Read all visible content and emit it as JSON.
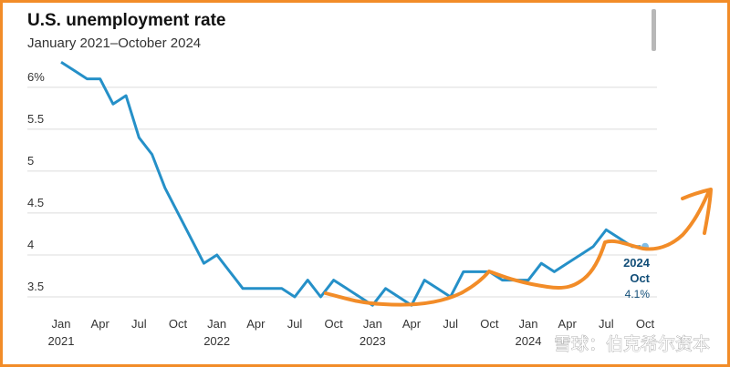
{
  "chart_data": {
    "type": "line",
    "title": "U.S. unemployment rate",
    "subtitle": "January 2021–October 2024",
    "categories": [
      "Jan",
      null,
      null,
      "Apr",
      null,
      null,
      "Jul",
      null,
      null,
      "Oct",
      null,
      null,
      "Jan",
      null,
      null,
      "Apr",
      null,
      null,
      "Jul",
      null,
      null,
      "Oct",
      null,
      null,
      "Jan",
      null,
      null,
      "Apr",
      null,
      null,
      "Jul",
      null,
      null,
      "Oct",
      null,
      null,
      "Jan",
      null,
      null,
      "Apr",
      null,
      null,
      "Jul",
      null,
      null,
      "Oct"
    ],
    "years": [
      "2021",
      "2022",
      "2023",
      "2024"
    ],
    "series": [
      {
        "name": "Unemployment rate",
        "color": "#2590c8",
        "values": [
          6.3,
          6.2,
          6.1,
          6.1,
          5.8,
          5.9,
          5.4,
          5.2,
          4.8,
          4.5,
          4.2,
          3.9,
          4.0,
          3.8,
          3.6,
          3.6,
          3.6,
          3.6,
          3.5,
          3.7,
          3.5,
          3.7,
          3.6,
          3.5,
          3.4,
          3.6,
          3.5,
          3.4,
          3.7,
          3.6,
          3.5,
          3.8,
          3.8,
          3.8,
          3.7,
          3.7,
          3.7,
          3.9,
          3.8,
          3.9,
          4.0,
          4.1,
          4.3,
          4.2,
          4.1,
          4.1
        ],
        "value_labels": [
          null,
          null,
          null,
          null,
          null,
          null,
          null,
          null,
          null,
          null,
          null,
          null,
          null,
          null,
          null,
          null,
          null,
          null,
          null,
          null,
          null,
          null,
          null,
          null,
          null,
          null,
          null,
          null,
          null,
          null,
          null,
          null,
          null,
          null,
          null,
          null,
          null,
          null,
          null,
          null,
          null,
          null,
          null,
          null,
          null,
          "4.1%"
        ]
      }
    ],
    "end_label": [
      "2024",
      "Oct"
    ],
    "ylim": [
      3.35,
      6.4
    ],
    "yticks": [
      3.5,
      4,
      4.5,
      5,
      5.5,
      {
        "value": 6,
        "label": "6%"
      }
    ],
    "grid": true,
    "watermark": "雪球：伯克希尔资本"
  }
}
